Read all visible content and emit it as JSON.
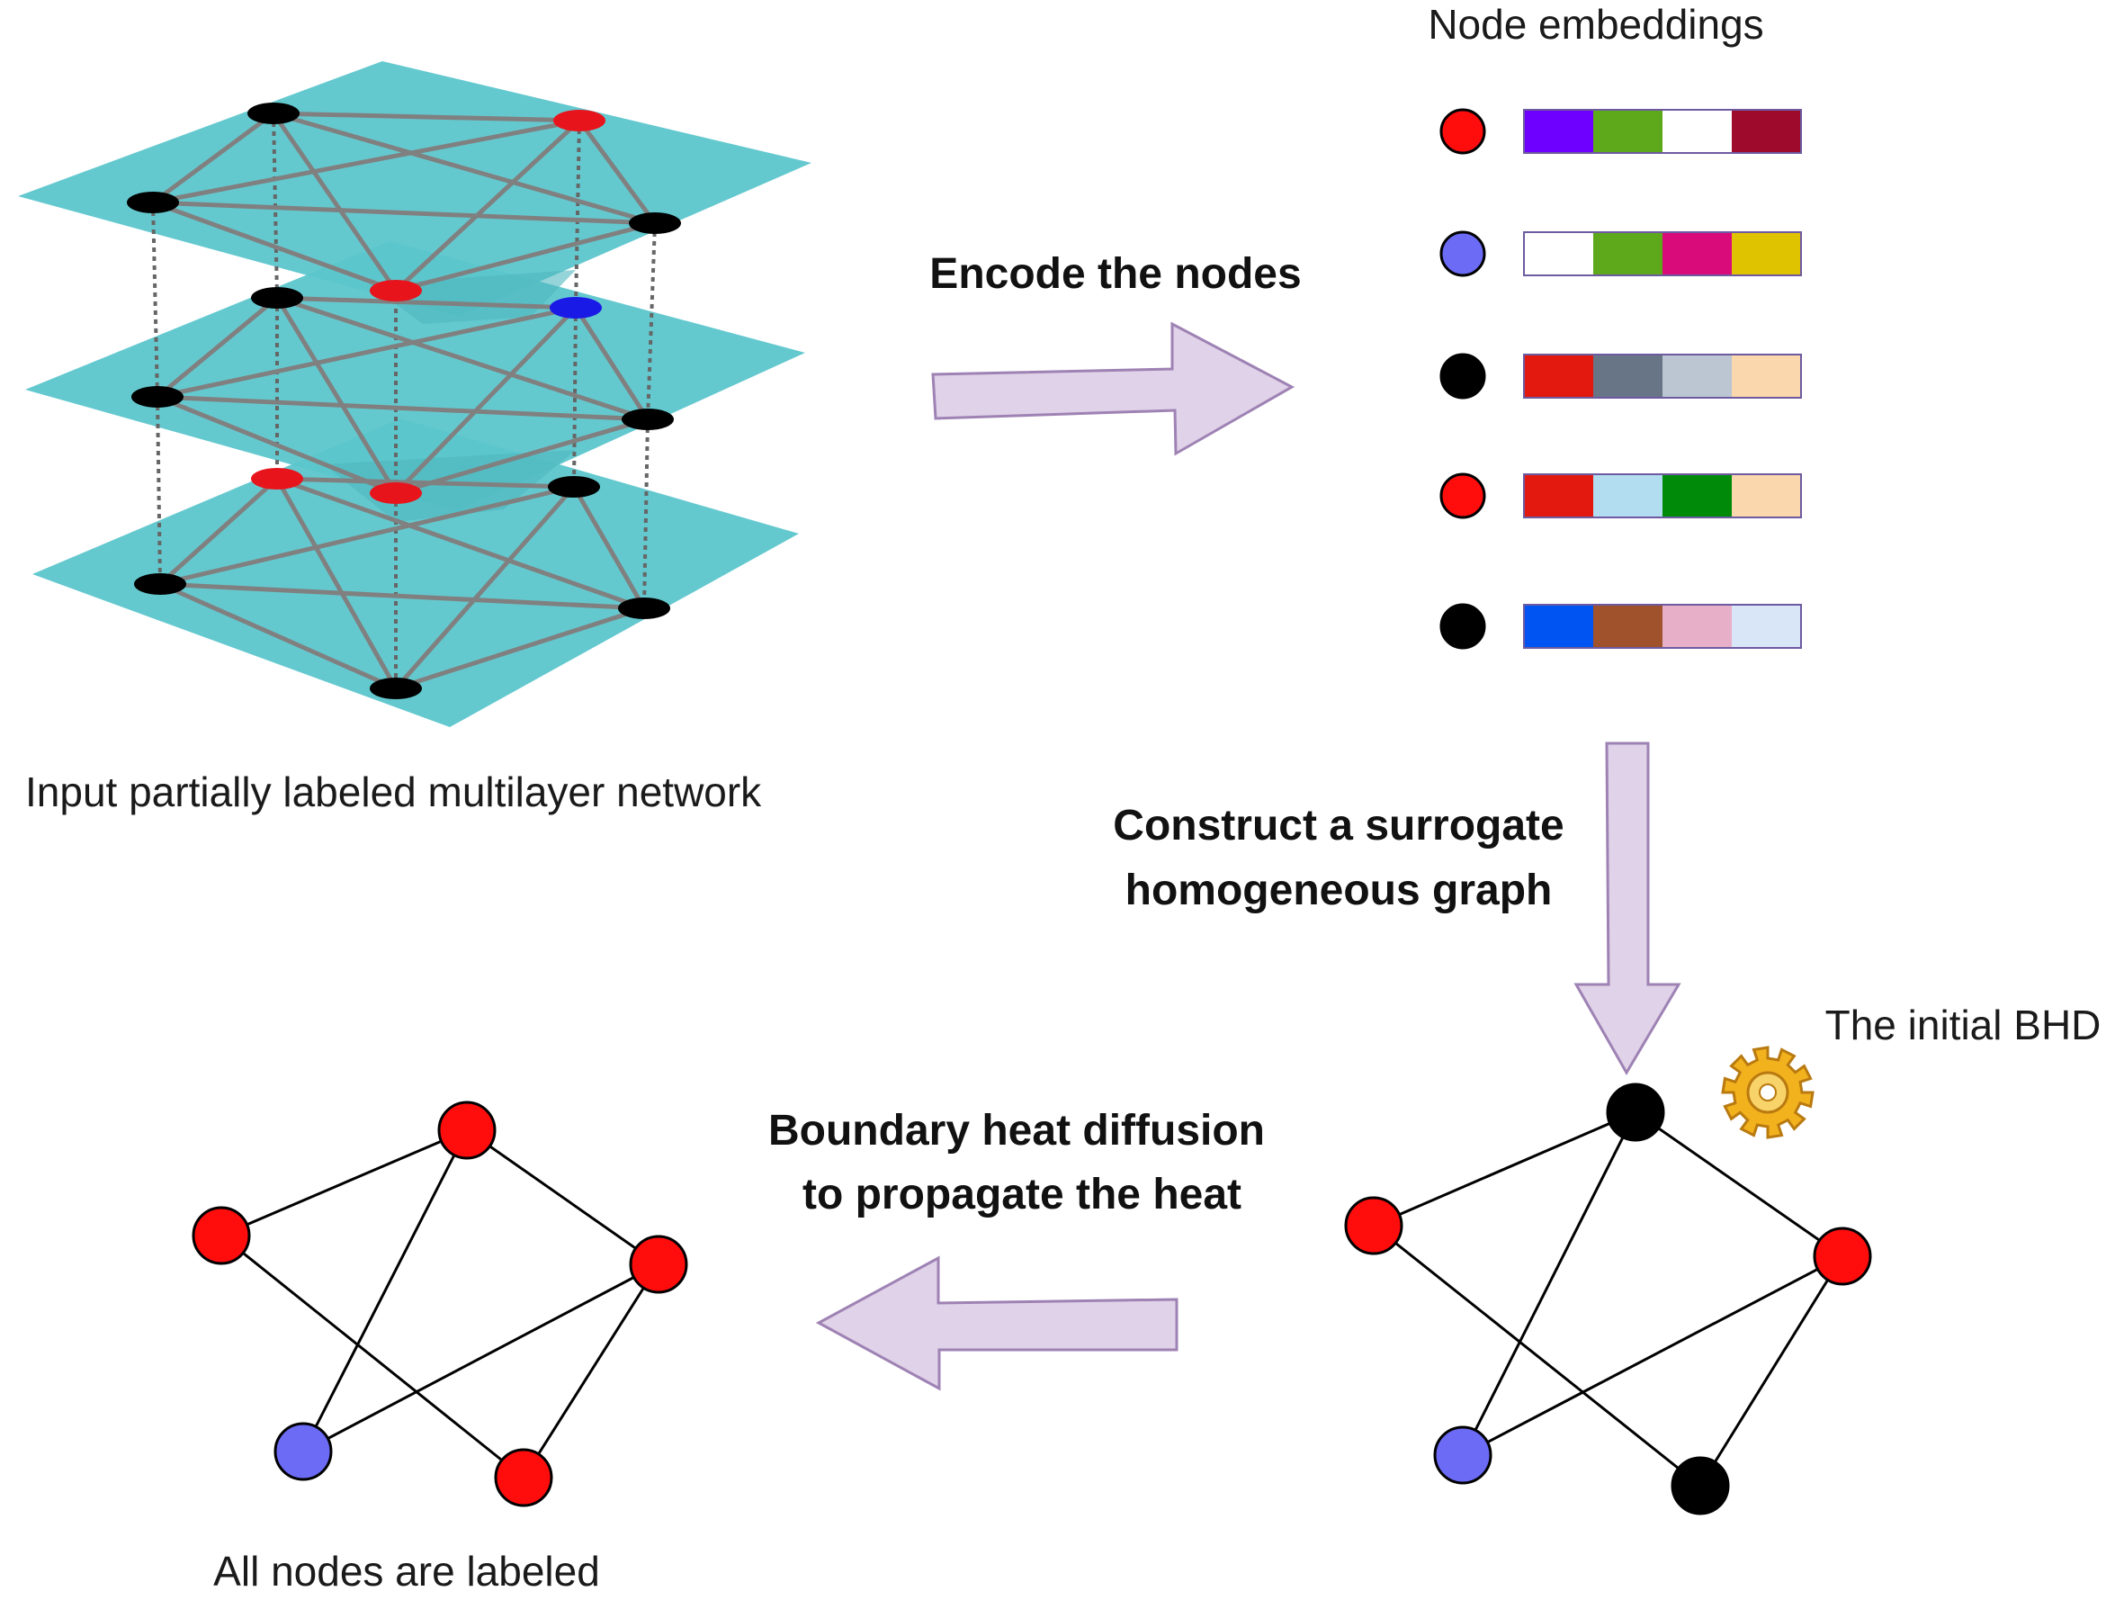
{
  "multilayer": {
    "caption": "Input partially labeled multilayer network",
    "layer_labels": [
      "0",
      "1",
      "2"
    ],
    "node_labels": [
      "0",
      "1",
      "2",
      "3",
      "4"
    ],
    "layers": [
      {
        "colors": [
          "#e8141c",
          "#e8141c",
          "#000000",
          "#000000",
          "#000000"
        ]
      },
      {
        "colors": [
          "#e8141c",
          "#1a1ae6",
          "#000000",
          "#000000",
          "#000000"
        ]
      },
      {
        "colors": [
          "#000000",
          "#000000",
          "#000000",
          "#e8141c",
          "#000000"
        ]
      }
    ]
  },
  "embeddings": {
    "title": "Node embeddings",
    "rows": [
      {
        "label": "0",
        "node_color": "#ff0d0d",
        "cells": [
          "#6e00ff",
          "#5ea91b",
          "#ffffff",
          "#9e0a2c"
        ]
      },
      {
        "label": "1",
        "node_color": "#6b6bf5",
        "cells": [
          "#ffffff",
          "#5ea91b",
          "#d90a7a",
          "#e0c300"
        ]
      },
      {
        "label": "2",
        "node_color": "#000000",
        "cells": [
          "#e3190f",
          "#687587",
          "#bcc6d2",
          "#fad7ac"
        ]
      },
      {
        "label": "3",
        "node_color": "#ff0d0d",
        "cells": [
          "#e3190f",
          "#b2dcf0",
          "#008a0a",
          "#fad7ac"
        ]
      },
      {
        "label": "4",
        "node_color": "#000000",
        "cells": [
          "#0055f2",
          "#a0522d",
          "#e8b0c8",
          "#d8e6f8"
        ]
      }
    ]
  },
  "steps": {
    "encode": "Encode the nodes",
    "construct_line1": "Construct a surrogate",
    "construct_line2": "homogeneous graph",
    "diffuse_line1": "Boundary heat diffusion",
    "diffuse_line2": "to propagate the heat"
  },
  "initial_graph": {
    "title": "The initial BHD",
    "icon": "gear-icon",
    "nodes": [
      {
        "label": "0",
        "color": "#ff0d0d"
      },
      {
        "label": "1",
        "color": "#6b6bf5"
      },
      {
        "label": "2",
        "color": "#000000"
      },
      {
        "label": "3",
        "color": "#ff0d0d"
      },
      {
        "label": "4",
        "color": "#000000"
      }
    ]
  },
  "final_graph": {
    "caption": "All nodes are labeled",
    "nodes": [
      {
        "label": "0",
        "color": "#ff0d0d"
      },
      {
        "label": "1",
        "color": "#6b6bf5"
      },
      {
        "label": "2",
        "color": "#ff0d0d"
      },
      {
        "label": "3",
        "color": "#ff0d0d"
      },
      {
        "label": "4",
        "color": "#ff0d0d"
      }
    ]
  },
  "colors": {
    "plane": "#5cc6cc",
    "plane_edge": "#808080",
    "arrow_fill": "#e0d2e8",
    "arrow_stroke": "#9e82b4"
  }
}
